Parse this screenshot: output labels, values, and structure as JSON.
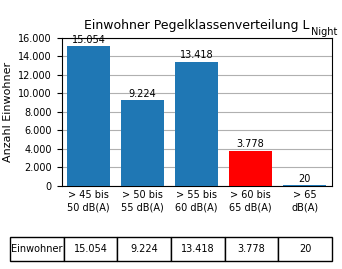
{
  "chart_data": {
    "type": "bar",
    "title": "Einwohner Pegelklassenverteilung L",
    "title_subscript": "Night",
    "ylabel": "Anzahl Einwohner",
    "categories": [
      "> 45 bis\n50 dB(A)",
      "> 50 bis\n55 dB(A)",
      "> 55 bis\n60 dB(A)",
      "> 60 bis\n65 dB(A)",
      "> 65\ndB(A)"
    ],
    "values": [
      15054,
      9224,
      13418,
      3778,
      20
    ],
    "colors": [
      "#1f77b4",
      "#1f77b4",
      "#1f77b4",
      "#ff0000",
      "#1f77b4"
    ],
    "data_labels": true,
    "value_labels": [
      "15.054",
      "9.224",
      "13.418",
      "3.778",
      "20"
    ],
    "ylim": [
      0,
      16000
    ],
    "yticks": [
      0,
      {
        "value": 2000,
        "label": "2.000"
      },
      {
        "value": 4000,
        "label": "4.000"
      },
      {
        "value": 6000,
        "label": "6.000"
      },
      {
        "value": 8000,
        "label": "8.000"
      },
      {
        "value": 10000,
        "label": "10.000"
      },
      {
        "value": 12000,
        "label": "12.000"
      },
      {
        "value": 14000,
        "label": "14.000"
      },
      {
        "value": 16000,
        "label": "16.000"
      }
    ],
    "grid": true,
    "table": {
      "row_label": "Einwohner",
      "cells": [
        "15.054",
        "9.224",
        "13.418",
        "3.778",
        "20"
      ]
    }
  }
}
